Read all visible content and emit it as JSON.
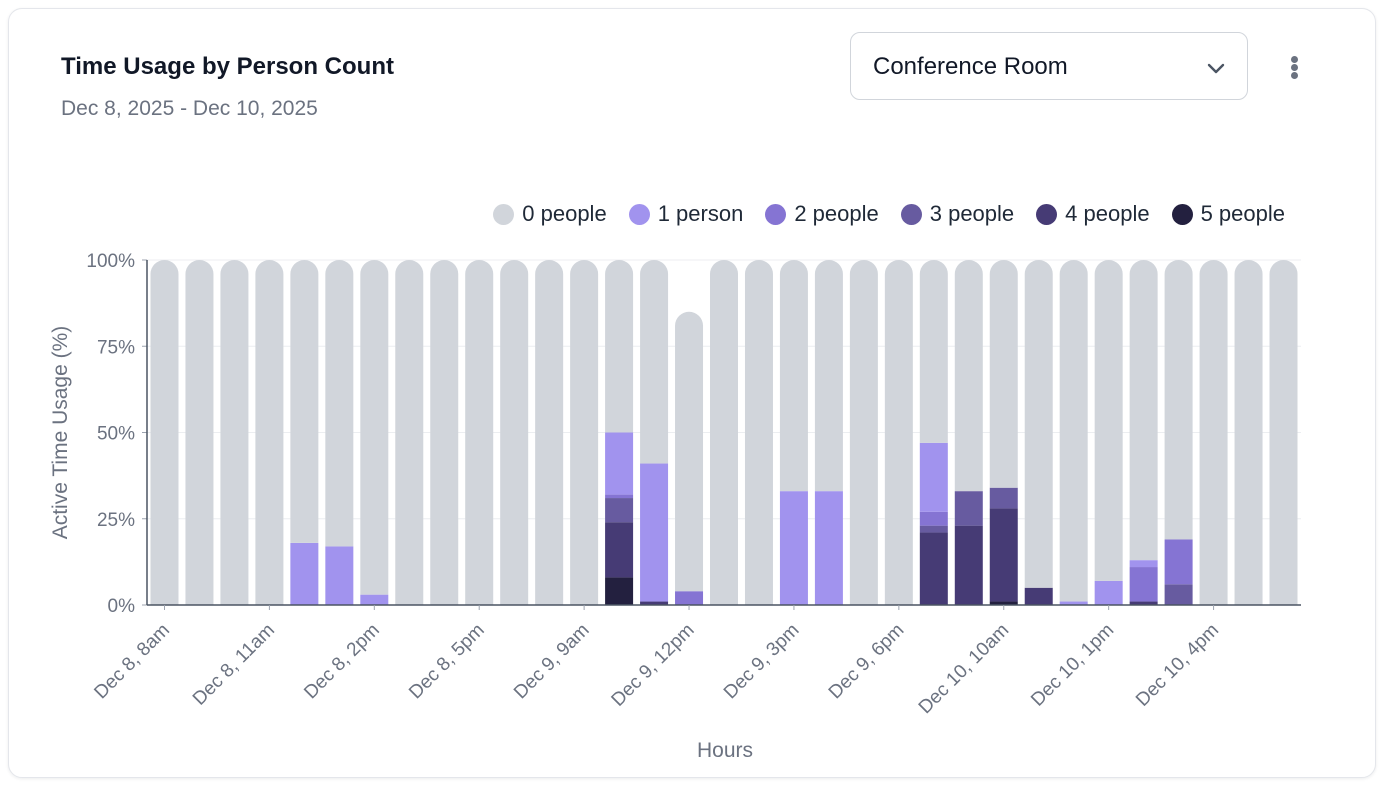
{
  "header": {
    "title": "Time Usage by Person Count",
    "subtitle": "Dec 8, 2025 - Dec 10, 2025"
  },
  "room_select": {
    "value": "Conference Room",
    "icon": "chevron-down-icon"
  },
  "menu": {
    "icon": "more-vertical-icon"
  },
  "chart_data": {
    "type": "bar",
    "stacked": true,
    "ylabel": "Active Time Usage (%)",
    "xlabel": "Hours",
    "ylim": [
      0,
      100
    ],
    "yticks": [
      "0%",
      "25%",
      "50%",
      "75%",
      "100%"
    ],
    "ytick_values": [
      0,
      25,
      50,
      75,
      100
    ],
    "grid": true,
    "legend_position": "top-right",
    "legend": [
      "0 people",
      "1 person",
      "2 people",
      "3 people",
      "4 people",
      "5 people"
    ],
    "colors": [
      "#d1d5db",
      "#a193ee",
      "#8574d3",
      "#675ba0",
      "#463b75",
      "#23203f"
    ],
    "x_tick_labels": [
      "Dec 8, 8am",
      "Dec 8, 11am",
      "Dec 8, 2pm",
      "Dec 8, 5pm",
      "Dec 9, 9am",
      "Dec 9, 12pm",
      "Dec 9, 3pm",
      "Dec 9, 6pm",
      "Dec 10, 10am",
      "Dec 10, 1pm",
      "Dec 10, 4pm"
    ],
    "x_tick_bar_index": [
      0,
      3,
      6,
      9,
      12,
      15,
      18,
      21,
      24,
      27,
      30
    ],
    "bar_count": 33,
    "series": [
      {
        "name": "0 people",
        "values": [
          100,
          100,
          100,
          100,
          82,
          83,
          97,
          100,
          100,
          100,
          100,
          100,
          100,
          50,
          59,
          81,
          100,
          100,
          67,
          67,
          100,
          100,
          53,
          67,
          66,
          95,
          99,
          93,
          87,
          81,
          100,
          100,
          100
        ]
      },
      {
        "name": "1 person",
        "values": [
          0,
          0,
          0,
          0,
          18,
          17,
          3,
          0,
          0,
          0,
          0,
          0,
          0,
          18,
          40,
          0,
          0,
          0,
          33,
          33,
          0,
          0,
          20,
          0,
          0,
          0,
          1,
          7,
          2,
          0,
          0,
          0,
          0
        ]
      },
      {
        "name": "2 people",
        "values": [
          0,
          0,
          0,
          0,
          0,
          0,
          0,
          0,
          0,
          0,
          0,
          0,
          0,
          1,
          0,
          4,
          0,
          0,
          0,
          0,
          0,
          0,
          4,
          0,
          0,
          0,
          0,
          0,
          10,
          13,
          0,
          0,
          0
        ]
      },
      {
        "name": "3 people",
        "values": [
          0,
          0,
          0,
          0,
          0,
          0,
          0,
          0,
          0,
          0,
          0,
          0,
          0,
          7,
          0,
          0,
          0,
          0,
          0,
          0,
          0,
          0,
          2,
          10,
          6,
          0,
          0,
          0,
          0,
          6,
          0,
          0,
          0
        ]
      },
      {
        "name": "4 people",
        "values": [
          0,
          0,
          0,
          0,
          0,
          0,
          0,
          0,
          0,
          0,
          0,
          0,
          0,
          16,
          1,
          0,
          0,
          0,
          0,
          0,
          0,
          0,
          21,
          23,
          27,
          5,
          0,
          0,
          1,
          0,
          0,
          0,
          0
        ]
      },
      {
        "name": "5 people",
        "values": [
          0,
          0,
          0,
          0,
          0,
          0,
          0,
          0,
          0,
          0,
          0,
          0,
          0,
          8,
          0,
          0,
          0,
          0,
          0,
          0,
          0,
          0,
          0,
          0,
          1,
          0,
          0,
          0,
          0,
          0,
          0,
          0,
          0
        ]
      }
    ]
  }
}
